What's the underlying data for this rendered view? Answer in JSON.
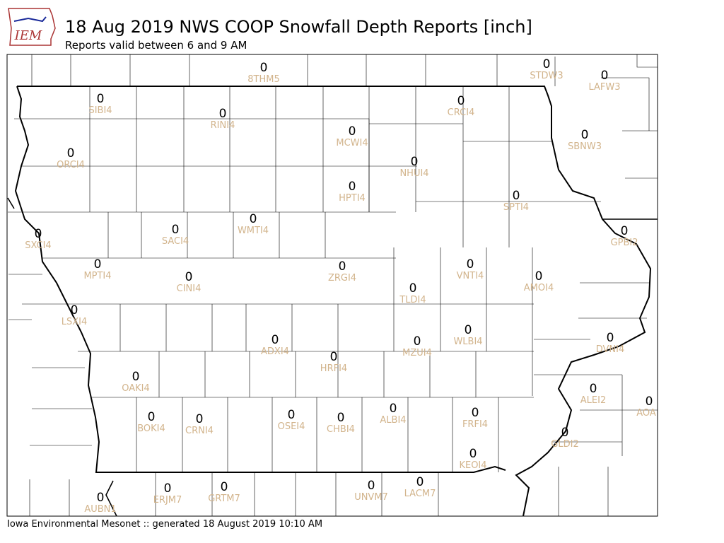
{
  "logo_text": "IEM",
  "header": {
    "title": "18 Aug 2019 NWS COOP Snowfall Depth Reports [inch]",
    "subtitle": "Reports valid between 6 and 9 AM"
  },
  "footer": "Iowa Environmental Mesonet :: generated 18 August 2019 10:10 AM",
  "stations": [
    {
      "id": "8THM5",
      "value": 0
    },
    {
      "id": "STDW3",
      "value": 0
    },
    {
      "id": "LAFW3",
      "value": 0
    },
    {
      "id": "SIBI4",
      "value": 0
    },
    {
      "id": "RINI4",
      "value": 0
    },
    {
      "id": "CRCI4",
      "value": 0
    },
    {
      "id": "MCWI4",
      "value": 0
    },
    {
      "id": "SBNW3",
      "value": 0
    },
    {
      "id": "ORCI4",
      "value": 0
    },
    {
      "id": "NHUI4",
      "value": 0
    },
    {
      "id": "HPTI4",
      "value": 0
    },
    {
      "id": "SPTI4",
      "value": 0
    },
    {
      "id": "WMTI4",
      "value": 0
    },
    {
      "id": "SACI4",
      "value": 0
    },
    {
      "id": "SXCI4",
      "value": 0
    },
    {
      "id": "GPBI2",
      "value": 0
    },
    {
      "id": "MPTI4",
      "value": 0
    },
    {
      "id": "VNTI4",
      "value": 0
    },
    {
      "id": "ZRGI4",
      "value": 0
    },
    {
      "id": "CINI4",
      "value": 0
    },
    {
      "id": "AMOI4",
      "value": 0
    },
    {
      "id": "TLDI4",
      "value": 0
    },
    {
      "id": "LSXI4",
      "value": 0
    },
    {
      "id": "WLBI4",
      "value": 0
    },
    {
      "id": "DVNI4",
      "value": 0
    },
    {
      "id": "ADXI4",
      "value": 0
    },
    {
      "id": "MZUI4",
      "value": 0
    },
    {
      "id": "HRFI4",
      "value": 0
    },
    {
      "id": "OAKI4",
      "value": 0
    },
    {
      "id": "ALEI2",
      "value": 0
    },
    {
      "id": "AOA",
      "value": 0
    },
    {
      "id": "ALBI4",
      "value": 0
    },
    {
      "id": "FRFI4",
      "value": 0
    },
    {
      "id": "OSEI4",
      "value": 0
    },
    {
      "id": "CHBI4",
      "value": 0
    },
    {
      "id": "BOKI4",
      "value": 0
    },
    {
      "id": "CRNI4",
      "value": 0
    },
    {
      "id": "GLDI2",
      "value": 0
    },
    {
      "id": "KEOI4",
      "value": 0
    },
    {
      "id": "LACM7",
      "value": 0
    },
    {
      "id": "UNVM7",
      "value": 0
    },
    {
      "id": "GRTM7",
      "value": 0
    },
    {
      "id": "ERJM7",
      "value": 0
    },
    {
      "id": "AUBN1",
      "value": 0
    }
  ]
}
